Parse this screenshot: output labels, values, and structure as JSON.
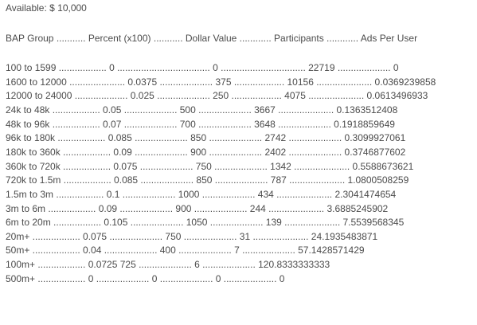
{
  "available": "Available: $ 10,000",
  "header": "BAP Group ........... Percent (x100) ........... Dollar Value ............ Participants ............ Ads Per User",
  "rows": [
    "100 to 1599 .................. 0 ................................... 0 ................................ 22719 .................... 0",
    "1600 to 12000 ..................... 0.0375 .................... 375 ................... 10156 ..................... 0.0369239858",
    "12000 to 24000 .................... 0.025 .................... 250 ................... 4075 ..................... 0.0613496933",
    "24k to 48k .................. 0.05 .................... 500 .................... 3667 ..................... 0.1363512408",
    "48k to 96k .................. 0.07 .................... 700 .................... 3648 .................... 0.1918859649",
    "96k to 180k .................. 0.085 .................... 850 .................... 2742 .................... 0.3099927061",
    "180k to 360k .................. 0.09 .................... 900 .................... 2402 .................... 0.3746877602",
    "360k to 720k .................. 0.075 .................... 750 .................... 1342 ..................... 0.5588673621",
    "720k to 1.5m .................. 0.085 .................... 850 .................... 787 ..................... 1.0800508259",
    "1.5m to 3m .................. 0.1 .................... 1000 .................... 434 ..................... 2.3041474654",
    "3m to 6m .................. 0.09 .................... 900 .................... 244 ..................... 3.6885245902",
    "6m to 20m .................. 0.105 .................... 1050 .................... 139 ..................... 7.5539568345",
    "20m+ .................. 0.075 .................... 750 .................... 31 ..................... 24.1935483871",
    "50m+ .................. 0.04 .................... 400 .................... 7 .................... 57.1428571429",
    "100m+ .................. 0.0725 725 .................... 6 .................... 120.8333333333",
    "500m+ .................. 0 .................... 0 .................... 0 .................... 0"
  ]
}
